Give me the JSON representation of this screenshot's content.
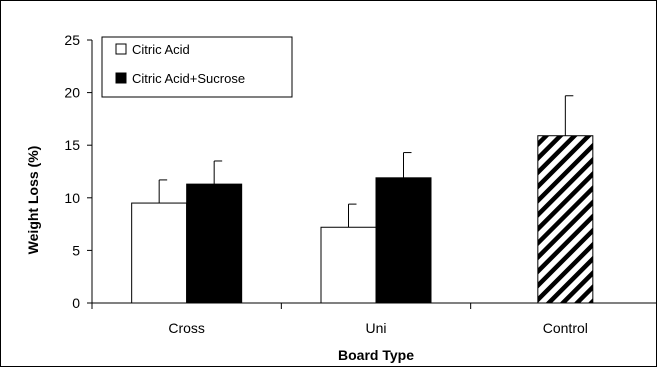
{
  "chart_data": {
    "type": "bar",
    "title": "",
    "xlabel": "Board Type",
    "ylabel": "Weight Loss (%)",
    "ylim": [
      0,
      25
    ],
    "yticks": [
      0,
      5,
      10,
      15,
      20,
      25
    ],
    "grid": false,
    "legend_position": "top-left",
    "categories": [
      "Cross",
      "Uni",
      "Control"
    ],
    "series": [
      {
        "name": "Citric Acid",
        "fill": "#ffffff",
        "pattern": "solid",
        "values": [
          9.5,
          7.2,
          null
        ],
        "errors": [
          2.2,
          2.2,
          null
        ]
      },
      {
        "name": "Citric Acid+Sucrose",
        "fill": "#000000",
        "pattern": "solid",
        "values": [
          11.3,
          11.9,
          null
        ],
        "errors": [
          2.2,
          2.4,
          null
        ]
      },
      {
        "name": "Control",
        "fill": "#ffffff",
        "pattern": "diagonal-hatch",
        "values": [
          null,
          null,
          15.9
        ],
        "errors": [
          null,
          null,
          3.8
        ]
      }
    ]
  }
}
